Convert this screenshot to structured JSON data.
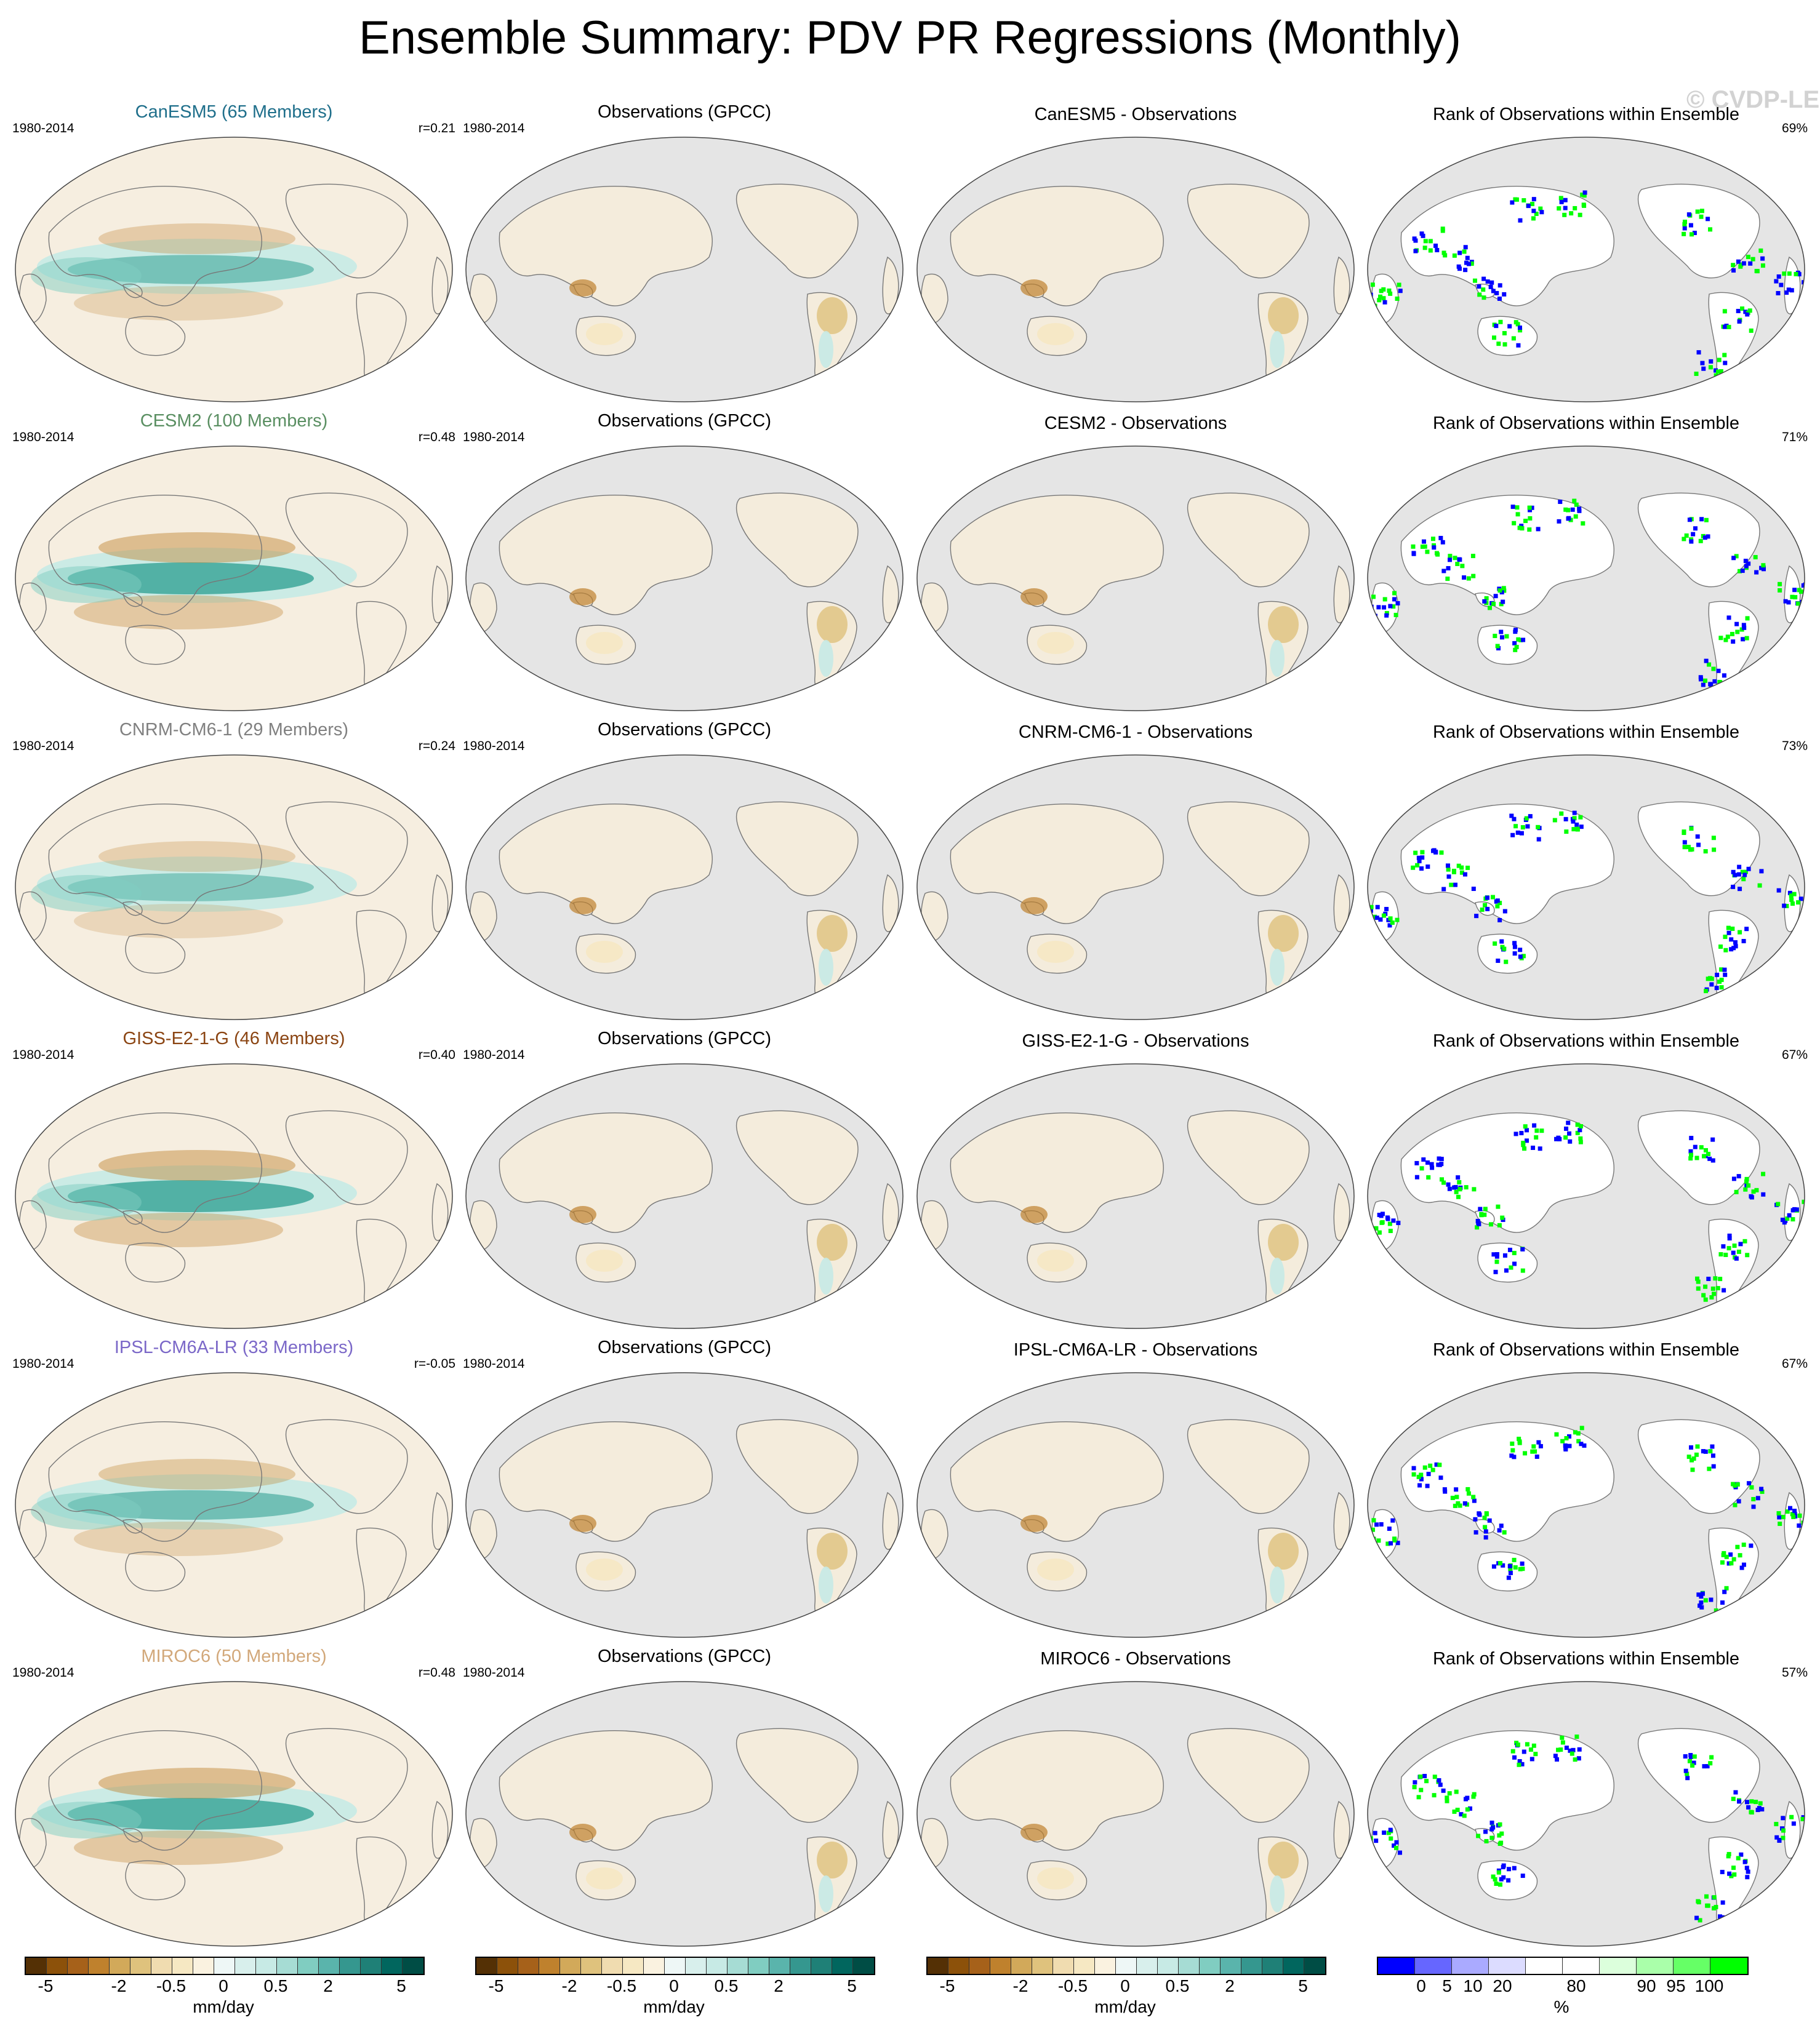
{
  "title": "Ensemble Summary: PDV PR Regressions (Monthly)",
  "watermark": "© CVDP-LE",
  "rows": [
    {
      "model_title": "CanESM5 (65 Members)",
      "model_color": "#1f6f8b",
      "period": "1980-2014",
      "r": "r=0.21",
      "obs_title": "Observations (GPCC)",
      "obs_period": "1980-2014",
      "diff_title": "CanESM5 - Observations",
      "rank_title": "Rank of Observations within Ensemble",
      "rank_pct": "69%"
    },
    {
      "model_title": "CESM2 (100 Members)",
      "model_color": "#5a8f62",
      "period": "1980-2014",
      "r": "r=0.48",
      "obs_title": "Observations (GPCC)",
      "obs_period": "1980-2014",
      "diff_title": "CESM2 - Observations",
      "rank_title": "Rank of Observations within Ensemble",
      "rank_pct": "71%"
    },
    {
      "model_title": "CNRM-CM6-1 (29 Members)",
      "model_color": "#808080",
      "period": "1980-2014",
      "r": "r=0.24",
      "obs_title": "Observations (GPCC)",
      "obs_period": "1980-2014",
      "diff_title": "CNRM-CM6-1 - Observations",
      "rank_title": "Rank of Observations within Ensemble",
      "rank_pct": "73%"
    },
    {
      "model_title": "GISS-E2-1-G (46 Members)",
      "model_color": "#8b4513",
      "period": "1980-2014",
      "r": "r=0.40",
      "obs_title": "Observations (GPCC)",
      "obs_period": "1980-2014",
      "diff_title": "GISS-E2-1-G - Observations",
      "rank_title": "Rank of Observations within Ensemble",
      "rank_pct": "67%"
    },
    {
      "model_title": "IPSL-CM6A-LR (33 Members)",
      "model_color": "#7b68c8",
      "period": "1980-2014",
      "r": "r=-0.05",
      "obs_title": "Observations (GPCC)",
      "obs_period": "1980-2014",
      "diff_title": "IPSL-CM6A-LR - Observations",
      "rank_title": "Rank of Observations within Ensemble",
      "rank_pct": "67%"
    },
    {
      "model_title": "MIROC6 (50 Members)",
      "model_color": "#d2a87a",
      "period": "1980-2014",
      "r": "r=0.48",
      "obs_title": "Observations (GPCC)",
      "obs_period": "1980-2014",
      "diff_title": "MIROC6 - Observations",
      "rank_title": "Rank of Observations within Ensemble",
      "rank_pct": "57%"
    }
  ],
  "colorbars": {
    "pr": {
      "colors": [
        "#543005",
        "#8c510a",
        "#a6611a",
        "#bf812d",
        "#d2a95a",
        "#dfc27d",
        "#f0dcb0",
        "#f6e8c3",
        "#faf2e0",
        "#eef7f6",
        "#d8efec",
        "#c7eae5",
        "#a6dcd4",
        "#80cdc1",
        "#5ab4ac",
        "#35978f",
        "#1f8077",
        "#01665e",
        "#004d45"
      ],
      "ticks": [
        "-5",
        "-2",
        "-0.5",
        "0",
        "0.5",
        "2",
        "5"
      ],
      "unit": "mm/day"
    },
    "rank": {
      "colors": [
        "#0000ff",
        "#6666ff",
        "#aaaaff",
        "#dcdcff",
        "#ffffff",
        "#ffffff",
        "#dcffdc",
        "#aaffaa",
        "#66ff66",
        "#00ff00"
      ],
      "ticks": [
        "0",
        "5",
        "10",
        "20",
        "80",
        "90",
        "95",
        "100"
      ],
      "unit": "%"
    }
  },
  "colors": {
    "land_gray": "#e5e5e5",
    "ocean_neutral": "#f6eee0",
    "wet": "#2a9d8f",
    "dry": "#bf812d",
    "rank_low": "#0000ff",
    "rank_high": "#00ff00"
  }
}
